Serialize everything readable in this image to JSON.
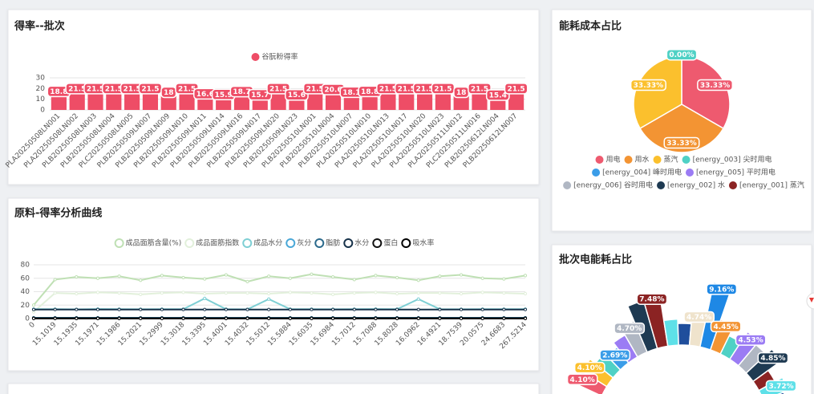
{
  "chart_data": [
    {
      "type": "bar",
      "title": "得率--批次",
      "categories": [
        "PLA20250508LN001",
        "PLA20250508LN002",
        "PLB20250508LN003",
        "PLB20250508LN004",
        "PLC20250508LN005",
        "PLB20250509LN007",
        "PLB20250509LN009",
        "PLB20250509LN010",
        "PLB20250509LN011",
        "PLB20250509LN014",
        "PLB20250509LN016",
        "PLB20250509LN017",
        "PLB20250509LN020",
        "PLB20250509LN023",
        "PLB20250510LN001",
        "PLB20250510LN004",
        "PLB20250510LN007",
        "PLA20250510LN010",
        "PLA20250510LN013",
        "PLA20250510LN017",
        "PLA20250510LN020",
        "PLA20250510LN023",
        "PLA20250511LN012",
        "PLC20250511LN016",
        "PLB20250612LN004",
        "PLB20250612LN007"
      ],
      "series": [
        {
          "name": "谷朊粉得率",
          "color": "#ee4d66",
          "values": [
            18.8,
            21.5,
            21.5,
            21.5,
            21.5,
            21.5,
            18,
            21.5,
            16.6,
            15.9,
            18.7,
            15.7,
            21.5,
            15.6,
            21.5,
            20.6,
            18.1,
            18.8,
            21.5,
            21.5,
            21.5,
            21.5,
            18,
            21.5,
            15.4,
            21.5
          ]
        }
      ],
      "ylim": [
        0,
        30
      ],
      "yticks": [
        0,
        10,
        20,
        30
      ],
      "grid": true,
      "legend": "top"
    },
    {
      "type": "line",
      "title": "原料-得率分析曲线",
      "categories": [
        "0",
        "15.1019",
        "15.1935",
        "15.1971",
        "15.1986",
        "15.2021",
        "15.2999",
        "15.3018",
        "15.3395",
        "15.4001",
        "15.4032",
        "15.5012",
        "15.5884",
        "15.6035",
        "15.6984",
        "15.7012",
        "15.7088",
        "15.8028",
        "16.0962",
        "16.4921",
        "18.7539",
        "20.0575",
        "24.6683",
        "267.5214"
      ],
      "series": [
        {
          "name": "成品面筋含量(%)",
          "color": "#bfe0b4",
          "values": [
            20,
            58,
            62,
            60,
            63,
            57,
            64,
            61,
            59,
            65,
            55,
            63,
            60,
            66,
            62,
            58,
            64,
            61,
            57,
            63,
            65,
            60,
            59,
            64
          ]
        },
        {
          "name": "成品面筋指数",
          "color": "#e2f0db",
          "values": [
            10,
            38,
            37,
            39,
            38,
            36,
            38,
            39,
            37,
            38,
            38,
            37,
            39,
            38,
            36,
            38,
            39,
            37,
            38,
            38,
            37,
            39,
            38,
            37
          ]
        },
        {
          "name": "成品水分",
          "color": "#7ecfd4",
          "values": [
            14,
            14,
            13.8,
            14.2,
            14,
            13.9,
            14.1,
            14,
            30,
            14,
            13.8,
            29,
            14,
            14.1,
            13.9,
            14,
            14.2,
            14,
            29,
            14,
            13.9,
            14,
            14.1,
            14
          ]
        },
        {
          "name": "灰分",
          "color": "#4aa8d8",
          "values": [
            0.6,
            0.6,
            0.6,
            0.6,
            0.6,
            0.6,
            0.6,
            0.6,
            0.6,
            0.6,
            0.6,
            0.6,
            0.6,
            0.6,
            0.6,
            0.6,
            0.6,
            0.6,
            0.6,
            0.6,
            0.6,
            0.6,
            0.6,
            0.6
          ]
        },
        {
          "name": "脂肪",
          "color": "#2b6a8c",
          "values": [
            1.2,
            1.2,
            1.2,
            1.2,
            1.2,
            1.2,
            1.2,
            1.2,
            1.2,
            1.2,
            1.2,
            1.2,
            1.2,
            1.2,
            1.2,
            1.2,
            1.2,
            1.2,
            1.2,
            1.2,
            1.2,
            1.2,
            1.2,
            1.2
          ]
        },
        {
          "name": "水分",
          "color": "#17324a",
          "values": [
            13.5,
            13.5,
            13.5,
            13.5,
            13.5,
            13.5,
            13.5,
            13.5,
            13.5,
            13.5,
            13.5,
            13.5,
            13.5,
            13.5,
            13.5,
            13.5,
            13.5,
            13.5,
            13.5,
            13.5,
            13.5,
            13.5,
            13.5,
            13.5
          ]
        },
        {
          "name": "蛋白",
          "color": "#111111",
          "values": [
            0.4,
            0.4,
            0.4,
            0.4,
            0.4,
            0.4,
            0.4,
            0.4,
            0.4,
            0.4,
            0.4,
            0.4,
            0.4,
            0.4,
            0.4,
            0.4,
            0.4,
            0.4,
            0.4,
            0.4,
            0.4,
            0.4,
            0.4,
            0.4
          ]
        },
        {
          "name": "吸水率",
          "color": "#000000",
          "values": [
            0.2,
            0.2,
            0.2,
            0.2,
            0.2,
            0.2,
            0.2,
            0.2,
            0.2,
            0.2,
            0.2,
            0.2,
            0.2,
            0.2,
            0.2,
            0.2,
            0.2,
            0.2,
            0.2,
            0.2,
            0.2,
            0.2,
            0.2,
            0.2
          ]
        }
      ],
      "ylim": [
        0,
        80
      ],
      "yticks": [
        0,
        20,
        40,
        60,
        80
      ],
      "grid": true,
      "legend": "top"
    },
    {
      "type": "pie",
      "title": "能耗成本占比",
      "categories": [
        "用电",
        "用水",
        "蒸汽",
        "[energy_003] 尖时用电",
        "[energy_004] 峰时用电",
        "[energy_005] 平时用电",
        "[energy_006] 谷时用电",
        "[energy_002] 水",
        "[energy_001] 蒸汽"
      ],
      "values": [
        33.33,
        33.33,
        33.33,
        0,
        0,
        0,
        0,
        0,
        0
      ],
      "value_labels": [
        "33.33%",
        "33.33%",
        "33.33%",
        "0.00%",
        null,
        null,
        null,
        null,
        null
      ],
      "colors": [
        "#ee5a6f",
        "#f39433",
        "#fbc02d",
        "#4fd1c5",
        "#3b9de8",
        "#9b7cf4",
        "#b0b7c3",
        "#1e3a52",
        "#8b2323"
      ],
      "legend": "bottom"
    },
    {
      "type": "rose",
      "title": "批次电能耗占比",
      "values": [
        4.1,
        4.1,
        3.2,
        2.69,
        3.5,
        4.7,
        6.9,
        7.48,
        3.6,
        3.0,
        4.74,
        9.16,
        4.45,
        2.8,
        4.53,
        3.8,
        4.85,
        2.6,
        3.72,
        3.0
      ],
      "value_labels": [
        "4.10%",
        "4.10%",
        null,
        "2.69%",
        null,
        "4.70%",
        null,
        "7.48%",
        null,
        null,
        "4.74%",
        "9.16%",
        "4.45%",
        null,
        "4.53%",
        null,
        "4.85%",
        null,
        "3.72%",
        null
      ],
      "colors": [
        "#ee5a6f",
        "#fbc02d",
        "#4fd1c5",
        "#3b9de8",
        "#9b7cf4",
        "#b0b7c3",
        "#1e3a52",
        "#8b2323",
        "#5ee0e8",
        "#1f4e9c",
        "#efe3cc",
        "#1e88e5",
        "#f39433",
        "#4fd1c5",
        "#9b7cf4",
        "#b0b7c3",
        "#1e3a52",
        "#8b2323",
        "#5ee0e8",
        "#1f4e9c"
      ]
    }
  ]
}
